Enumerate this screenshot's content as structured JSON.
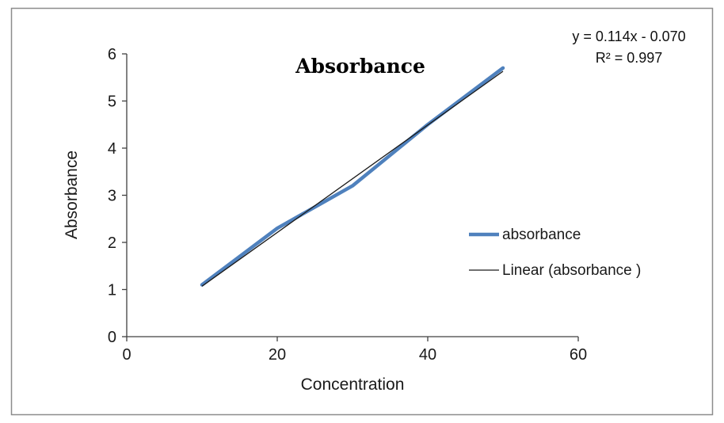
{
  "chart_data": {
    "type": "line",
    "title": "Absorbance",
    "xlabel": "Concentration",
    "ylabel": "Absorbance",
    "xlim": [
      0,
      60
    ],
    "ylim": [
      0,
      6
    ],
    "x_ticks": [
      0,
      20,
      40,
      60
    ],
    "y_ticks": [
      0,
      1,
      2,
      3,
      4,
      5,
      6
    ],
    "grid": false,
    "series": [
      {
        "name": "absorbance",
        "x": [
          10,
          20,
          30,
          40,
          50
        ],
        "y": [
          1.1,
          2.3,
          3.2,
          4.5,
          5.7
        ],
        "color": "#4F81BD",
        "stroke_width": 4.5
      }
    ],
    "trendline": {
      "name": "Linear (absorbance )",
      "slope": 0.114,
      "intercept": -0.07,
      "x_range": [
        10,
        50
      ],
      "color": "#1a1a1a",
      "stroke_width": 1.3,
      "equation_label": "y = 0.114x - 0.070",
      "r_squared_label": "R² = 0.997"
    },
    "legend": {
      "position": "middle-right",
      "entries": [
        {
          "label": "absorbance",
          "color": "#4F81BD",
          "stroke_width": 4.5
        },
        {
          "label": "Linear (absorbance )",
          "color": "#1a1a1a",
          "stroke_width": 1.3
        }
      ]
    }
  }
}
